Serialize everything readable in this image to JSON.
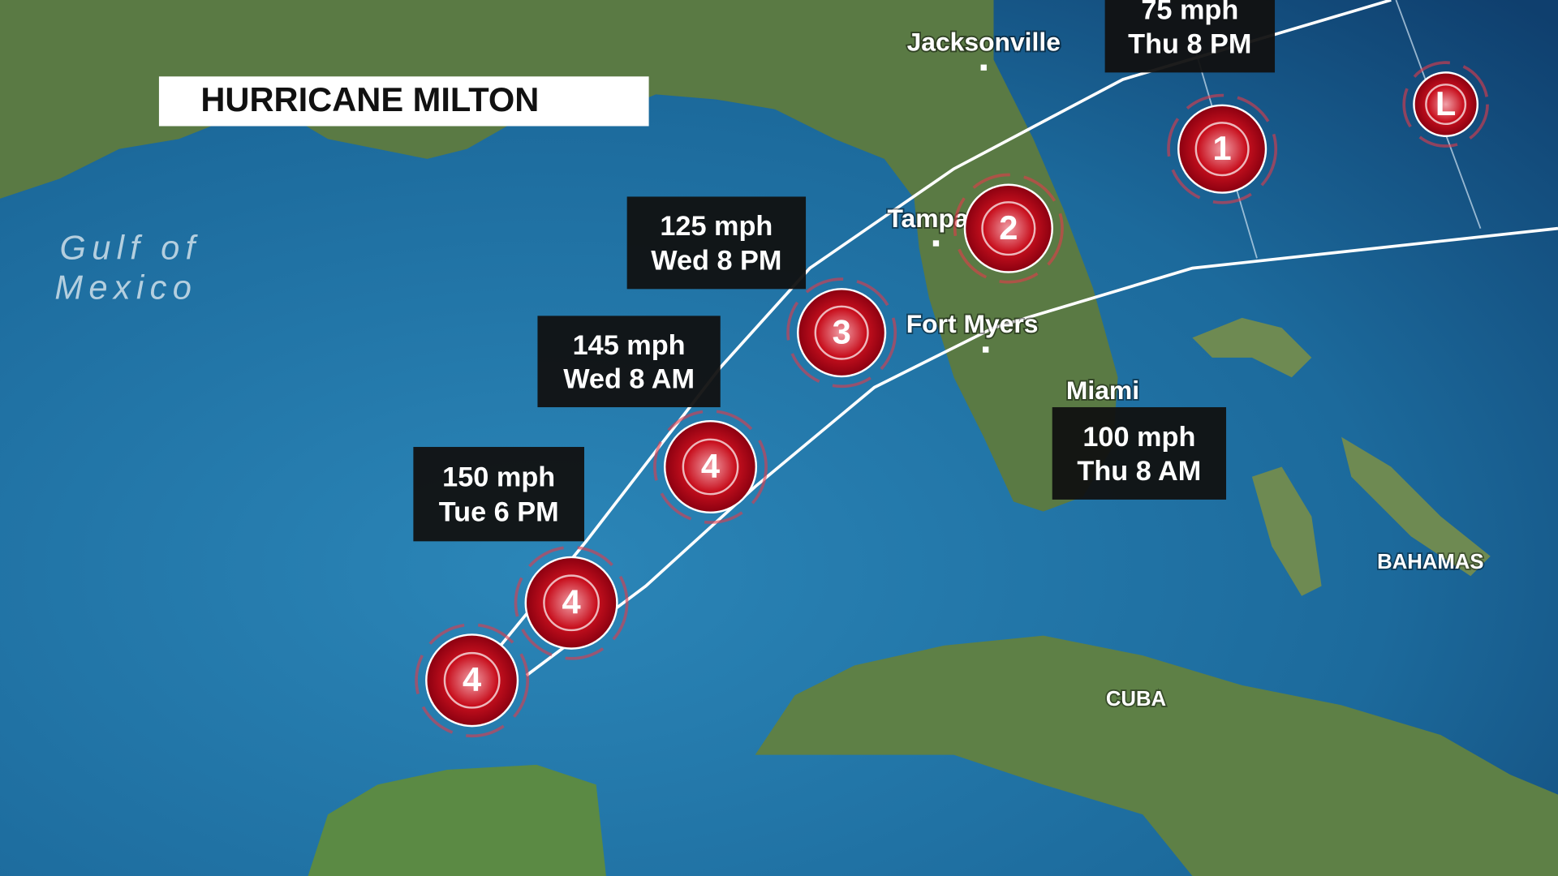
{
  "title": "HURRICANE MILTON",
  "gulf_label": [
    "Gulf of",
    "Mexico"
  ],
  "places": [
    {
      "name": "Jacksonville",
      "kind": "city"
    },
    {
      "name": "Tampa",
      "kind": "city"
    },
    {
      "name": "Fort Myers",
      "kind": "city"
    },
    {
      "name": "Miami",
      "kind": "city"
    },
    {
      "name": "BAHAMAS",
      "kind": "region"
    },
    {
      "name": "CUBA",
      "kind": "region"
    }
  ],
  "track": [
    {
      "category": "4"
    },
    {
      "category": "4"
    },
    {
      "category": "4"
    },
    {
      "category": "3"
    },
    {
      "category": "2"
    },
    {
      "category": "1"
    },
    {
      "category": "L"
    }
  ],
  "forecast_labels": [
    {
      "speed": "150 mph",
      "time": "Tue 6 PM"
    },
    {
      "speed": "145 mph",
      "time": "Wed 8 AM"
    },
    {
      "speed": "125 mph",
      "time": "Wed 8 PM"
    },
    {
      "speed": "100 mph",
      "time": "Thu 8 AM"
    },
    {
      "speed": "75 mph",
      "time": "Thu 8 PM"
    }
  ]
}
